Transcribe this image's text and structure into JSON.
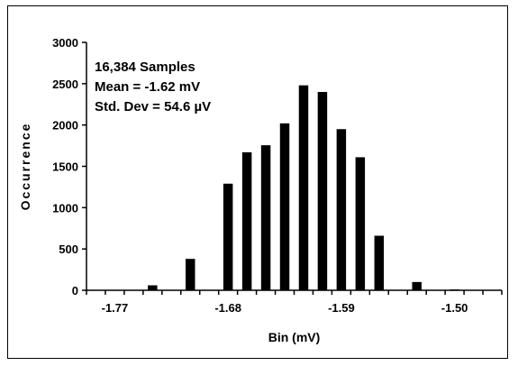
{
  "chart_data": {
    "type": "bar",
    "xlabel": "Bin (mV)",
    "ylabel": "Occurrence",
    "ylim": [
      0,
      3000
    ],
    "y_ticks": [
      0,
      500,
      1000,
      1500,
      2000,
      2500,
      3000
    ],
    "x_tick_labels": [
      "-1.77",
      "-1.68",
      "-1.59",
      "-1.50"
    ],
    "bins": [
      -1.785,
      -1.77,
      -1.755,
      -1.74,
      -1.725,
      -1.71,
      -1.695,
      -1.68,
      -1.665,
      -1.65,
      -1.635,
      -1.62,
      -1.605,
      -1.59,
      -1.575,
      -1.56,
      -1.545,
      -1.53,
      -1.515,
      -1.5,
      -1.485,
      -1.47
    ],
    "values": [
      0,
      5,
      0,
      60,
      0,
      380,
      0,
      1290,
      1670,
      1755,
      2020,
      2480,
      2400,
      1950,
      1610,
      660,
      0,
      100,
      0,
      10,
      0,
      0
    ],
    "annotations": [
      "16,384 Samples",
      "Mean = -1.62 mV",
      "Std. Dev = 54.6 µV"
    ],
    "grid": false,
    "bar_color": "#000000"
  }
}
